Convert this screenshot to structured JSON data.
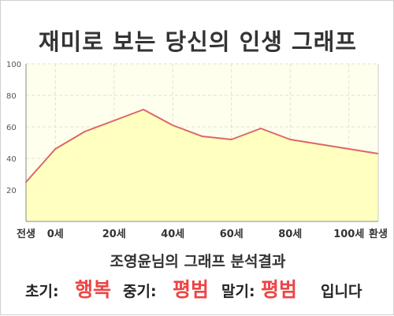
{
  "title": "재미로 보는 당신의 인생 그래프",
  "chart_data": {
    "type": "area",
    "x": [
      -10,
      0,
      10,
      20,
      30,
      40,
      50,
      60,
      70,
      80,
      90,
      100,
      110
    ],
    "y": [
      25,
      46,
      57,
      64,
      71,
      61,
      54,
      52,
      59,
      52,
      49,
      46,
      43
    ],
    "xlim": [
      -10,
      110
    ],
    "ylim": [
      0,
      100
    ],
    "x_ticks": [
      {
        "x": -10,
        "label": "전생"
      },
      {
        "x": 0,
        "label": "0세"
      },
      {
        "x": 20,
        "label": "20세"
      },
      {
        "x": 40,
        "label": "40세"
      },
      {
        "x": 60,
        "label": "60세"
      },
      {
        "x": 80,
        "label": "80세"
      },
      {
        "x": 100,
        "label": "100세"
      },
      {
        "x": 110,
        "label": "환생"
      }
    ],
    "y_ticks": [
      20,
      40,
      60,
      80,
      100
    ],
    "grid": true,
    "colors": {
      "line": "#dd6666",
      "fill": "#ffffc0",
      "plot_bg": "#ffffee",
      "grid": "#e2e2c8"
    }
  },
  "summary": "조영윤님의 그래프 분석결과",
  "result": {
    "early_label": "초기:",
    "early_value": "행복",
    "mid_label": "중기:",
    "mid_value": "평범",
    "late_label": "말기:",
    "late_value": "평범",
    "suffix": "입니다"
  }
}
